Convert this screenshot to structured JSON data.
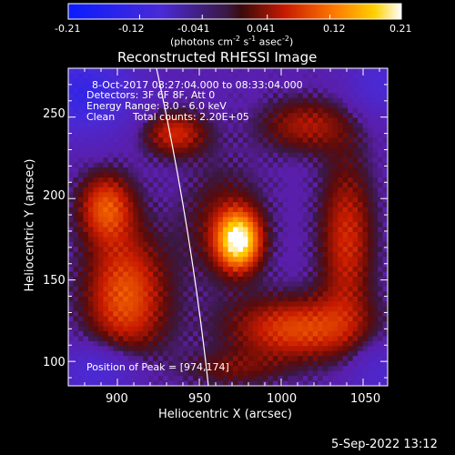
{
  "chart_data": {
    "type": "heatmap",
    "title": "Reconstructed RHESSI Image",
    "xlabel": "Heliocentric X (arcsec)",
    "ylabel": "Heliocentric Y (arcsec)",
    "xlim": [
      870,
      1065
    ],
    "ylim": [
      85,
      280
    ],
    "x_ticks": [
      "900",
      "950",
      "1000",
      "1050"
    ],
    "y_ticks": [
      "100",
      "150",
      "200",
      "250"
    ],
    "colorbar": {
      "ticks": [
        "-0.21",
        "-0.12",
        "-0.041",
        "0.041",
        "0.12",
        "0.21"
      ],
      "units_base": "(photons cm",
      "units_sup1": "-2",
      "units_mid": " s",
      "units_sup2": "-1",
      "units_mid2": " asec",
      "units_sup3": "-2",
      "units_end": ")",
      "range": [
        -0.21,
        0.21
      ]
    },
    "annotations": {
      "time_range": "8-Oct-2017 08:27:04.000 to 08:33:04.000",
      "detectors": "Detectors: 3F 6F 8F, Att 0",
      "energy": "Energy Range: 3.0 - 6.0 keV",
      "method": "Clean",
      "counts": "Total counts: 2.20E+05",
      "peak": "Position of Peak = [974,174]"
    },
    "peak_position": [
      974,
      174
    ],
    "footer_date": "5-Sep-2022 13:12"
  }
}
